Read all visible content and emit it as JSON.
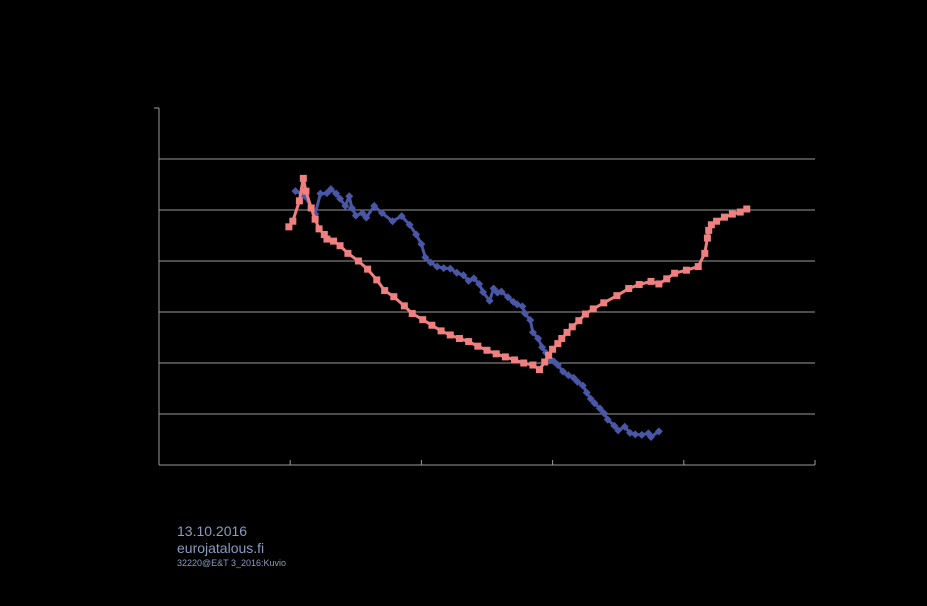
{
  "chart_data": {
    "type": "line",
    "title": "",
    "xlabel": "",
    "ylabel": "",
    "xlim": [
      0,
      5
    ],
    "ylim": [
      0,
      7
    ],
    "grid": "horizontal",
    "x_ticks": [
      1,
      2,
      3,
      4,
      5
    ],
    "y_gridlines": [
      1,
      2,
      3,
      4,
      5,
      6
    ],
    "series": [
      {
        "color": "#4a56a6",
        "marker": "diamond",
        "points": [
          [
            1.04,
            5.37
          ],
          [
            1.11,
            5.28
          ],
          [
            1.19,
            4.92
          ],
          [
            1.23,
            5.32
          ],
          [
            1.28,
            5.33
          ],
          [
            1.31,
            5.41
          ],
          [
            1.35,
            5.32
          ],
          [
            1.38,
            5.22
          ],
          [
            1.42,
            5.08
          ],
          [
            1.45,
            5.27
          ],
          [
            1.47,
            5.04
          ],
          [
            1.5,
            4.89
          ],
          [
            1.55,
            4.94
          ],
          [
            1.58,
            4.85
          ],
          [
            1.64,
            5.08
          ],
          [
            1.7,
            4.94
          ],
          [
            1.78,
            4.78
          ],
          [
            1.85,
            4.88
          ],
          [
            1.91,
            4.71
          ],
          [
            1.96,
            4.52
          ],
          [
            2.0,
            4.33
          ],
          [
            2.03,
            4.07
          ],
          [
            2.07,
            3.97
          ],
          [
            2.12,
            3.89
          ],
          [
            2.17,
            3.86
          ],
          [
            2.22,
            3.85
          ],
          [
            2.27,
            3.77
          ],
          [
            2.32,
            3.72
          ],
          [
            2.36,
            3.61
          ],
          [
            2.4,
            3.66
          ],
          [
            2.44,
            3.55
          ],
          [
            2.47,
            3.39
          ],
          [
            2.52,
            3.22
          ],
          [
            2.55,
            3.46
          ],
          [
            2.58,
            3.38
          ],
          [
            2.61,
            3.4
          ],
          [
            2.66,
            3.29
          ],
          [
            2.7,
            3.2
          ],
          [
            2.73,
            3.15
          ],
          [
            2.77,
            3.11
          ],
          [
            2.79,
            2.97
          ],
          [
            2.83,
            2.84
          ],
          [
            2.85,
            2.6
          ],
          [
            2.89,
            2.48
          ],
          [
            2.92,
            2.31
          ],
          [
            2.95,
            2.2
          ],
          [
            2.98,
            2.08
          ],
          [
            3.01,
            2.03
          ],
          [
            3.04,
            1.96
          ],
          [
            3.08,
            1.83
          ],
          [
            3.12,
            1.76
          ],
          [
            3.16,
            1.71
          ],
          [
            3.19,
            1.63
          ],
          [
            3.23,
            1.56
          ],
          [
            3.26,
            1.42
          ],
          [
            3.29,
            1.3
          ],
          [
            3.32,
            1.21
          ],
          [
            3.36,
            1.11
          ],
          [
            3.39,
            1.02
          ],
          [
            3.42,
            0.89
          ],
          [
            3.47,
            0.77
          ],
          [
            3.5,
            0.68
          ],
          [
            3.55,
            0.75
          ],
          [
            3.59,
            0.63
          ],
          [
            3.63,
            0.6
          ],
          [
            3.68,
            0.59
          ],
          [
            3.73,
            0.62
          ],
          [
            3.75,
            0.55
          ],
          [
            3.81,
            0.66
          ]
        ]
      },
      {
        "color": "#f08080",
        "marker": "square",
        "points": [
          [
            0.99,
            4.67
          ],
          [
            1.02,
            4.78
          ],
          [
            1.07,
            5.18
          ],
          [
            1.1,
            5.62
          ],
          [
            1.12,
            5.37
          ],
          [
            1.16,
            5.04
          ],
          [
            1.19,
            4.82
          ],
          [
            1.22,
            4.63
          ],
          [
            1.26,
            4.52
          ],
          [
            1.28,
            4.43
          ],
          [
            1.33,
            4.39
          ],
          [
            1.38,
            4.3
          ],
          [
            1.44,
            4.15
          ],
          [
            1.52,
            4.0
          ],
          [
            1.59,
            3.84
          ],
          [
            1.66,
            3.63
          ],
          [
            1.72,
            3.42
          ],
          [
            1.79,
            3.3
          ],
          [
            1.87,
            3.12
          ],
          [
            1.93,
            2.97
          ],
          [
            2.01,
            2.85
          ],
          [
            2.08,
            2.74
          ],
          [
            2.15,
            2.63
          ],
          [
            2.22,
            2.55
          ],
          [
            2.29,
            2.48
          ],
          [
            2.36,
            2.42
          ],
          [
            2.43,
            2.33
          ],
          [
            2.5,
            2.25
          ],
          [
            2.57,
            2.18
          ],
          [
            2.64,
            2.12
          ],
          [
            2.71,
            2.06
          ],
          [
            2.78,
            2.0
          ],
          [
            2.85,
            1.96
          ],
          [
            2.9,
            1.87
          ],
          [
            2.94,
            2.02
          ],
          [
            2.97,
            2.15
          ],
          [
            3.0,
            2.27
          ],
          [
            3.04,
            2.38
          ],
          [
            3.07,
            2.48
          ],
          [
            3.11,
            2.6
          ],
          [
            3.15,
            2.71
          ],
          [
            3.2,
            2.83
          ],
          [
            3.25,
            2.96
          ],
          [
            3.31,
            3.06
          ],
          [
            3.39,
            3.18
          ],
          [
            3.49,
            3.32
          ],
          [
            3.58,
            3.46
          ],
          [
            3.66,
            3.54
          ],
          [
            3.75,
            3.6
          ],
          [
            3.81,
            3.55
          ],
          [
            3.87,
            3.65
          ],
          [
            3.93,
            3.76
          ],
          [
            4.02,
            3.82
          ],
          [
            4.11,
            3.89
          ],
          [
            4.16,
            4.15
          ],
          [
            4.18,
            4.45
          ],
          [
            4.19,
            4.6
          ],
          [
            4.21,
            4.71
          ],
          [
            4.25,
            4.78
          ],
          [
            4.31,
            4.86
          ],
          [
            4.37,
            4.92
          ],
          [
            4.43,
            4.96
          ],
          [
            4.48,
            5.02
          ]
        ]
      }
    ]
  },
  "footer": {
    "date": "13.10.2016",
    "site": "eurojatalous.fi",
    "code": "32220@E&T 3_2016:Kuvio"
  }
}
